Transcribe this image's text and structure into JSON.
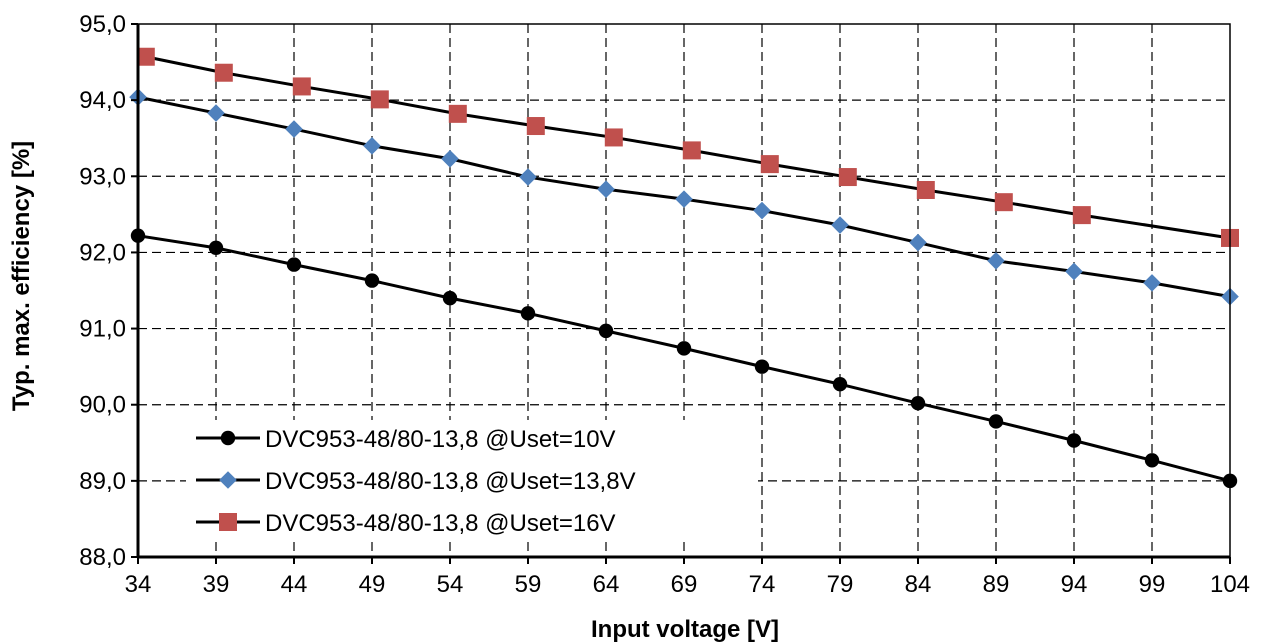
{
  "chart_data": {
    "type": "line",
    "title": "",
    "xlabel": "Input voltage [V]",
    "ylabel": "Typ. max. efficiency [%]",
    "xlim": [
      34,
      104
    ],
    "ylim": [
      88,
      95
    ],
    "x_ticks": [
      "34",
      "39",
      "44",
      "49",
      "54",
      "59",
      "64",
      "69",
      "74",
      "79",
      "84",
      "89",
      "94",
      "99",
      "104"
    ],
    "y_ticks": [
      "88,0",
      "89,0",
      "90,0",
      "91,0",
      "92,0",
      "93,0",
      "94,0",
      "95,0"
    ],
    "grid": "dashed",
    "legend_position": "bottom-left",
    "series": [
      {
        "name": "DVC953-48/80-13,8 @Uset=10V",
        "color": "#000000",
        "line_color": "#000000",
        "marker": "circle",
        "x": [
          34,
          39,
          44,
          49,
          54,
          59,
          64,
          69,
          74,
          79,
          84,
          89,
          94,
          99,
          104
        ],
        "values": [
          92.22,
          92.06,
          91.84,
          91.63,
          91.4,
          91.2,
          90.97,
          90.74,
          90.5,
          90.27,
          90.02,
          89.78,
          89.53,
          89.27,
          89.0
        ]
      },
      {
        "name": "DVC953-48/80-13,8 @Uset=13,8V",
        "color": "#4F81BD",
        "line_color": "#000000",
        "marker": "diamond",
        "x": [
          34,
          39,
          44,
          49,
          54,
          59,
          64,
          69,
          74,
          79,
          84,
          89,
          94,
          99,
          104
        ],
        "values": [
          94.04,
          93.83,
          93.62,
          93.4,
          93.23,
          92.99,
          92.83,
          92.7,
          92.55,
          92.36,
          92.13,
          91.89,
          91.75,
          91.6,
          91.42
        ]
      },
      {
        "name": "DVC953-48/80-13,8 @Uset=16V",
        "color": "#C0504D",
        "line_color": "#000000",
        "marker": "square",
        "x": [
          34.5,
          39.5,
          44.5,
          49.5,
          54.5,
          59.5,
          64.5,
          69.5,
          74.5,
          79.5,
          84.5,
          89.5,
          94.5,
          104
        ],
        "values": [
          94.57,
          94.36,
          94.18,
          94.01,
          93.82,
          93.66,
          93.51,
          93.34,
          93.16,
          92.99,
          92.82,
          92.66,
          92.49,
          92.19
        ]
      }
    ]
  }
}
